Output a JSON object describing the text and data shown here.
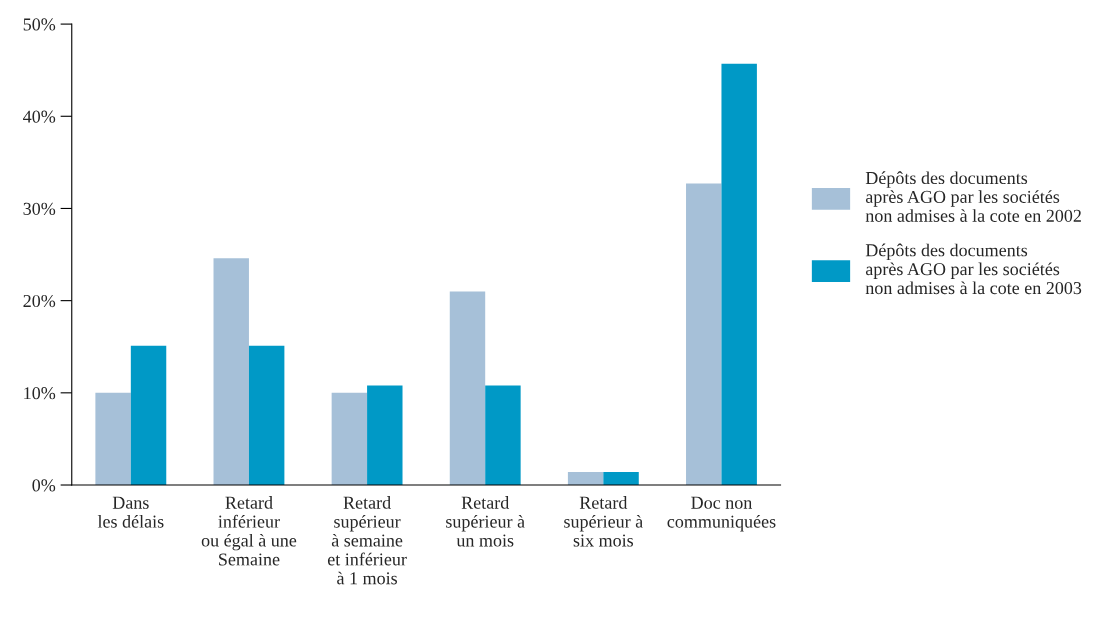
{
  "chart_data": {
    "type": "bar",
    "categories": [
      "Dans\nles délais",
      "Retard\ninférieur\nou égal à une\nSemaine",
      "Retard\nsupérieur\nà semaine\net inférieur\nà 1 mois",
      "Retard\nsupérieur à\nun mois",
      "Retard\nsupérieur à\nsix mois",
      "Doc non\ncommuniquées"
    ],
    "series": [
      {
        "name": "Dépôts des documents\naprès AGO par les sociétés\nnon admises à la cote en 2002",
        "color": "#a6c0d8",
        "values": [
          10,
          24.6,
          10,
          21,
          1.4,
          32.7
        ]
      },
      {
        "name": "Dépôts des documents\naprès AGO par les sociétés\nnon admises à la cote en 2003",
        "color": "#0099c6",
        "values": [
          15.1,
          15.1,
          10.8,
          10.8,
          1.4,
          45.7
        ]
      }
    ],
    "ylim": [
      0,
      50
    ],
    "yticks": [
      {
        "value": 0,
        "label": "0%"
      },
      {
        "value": 10,
        "label": "10%"
      },
      {
        "value": 20,
        "label": "20%"
      },
      {
        "value": 30,
        "label": "30%"
      },
      {
        "value": 40,
        "label": "40%"
      },
      {
        "value": 50,
        "label": "50%"
      }
    ],
    "grid": false,
    "legend": "right"
  }
}
